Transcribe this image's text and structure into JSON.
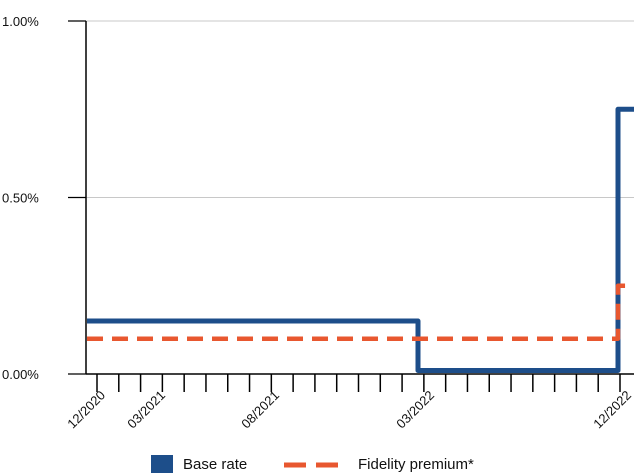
{
  "chart_data": {
    "type": "line",
    "title": "",
    "xlabel": "",
    "ylabel": "",
    "x_tick_labels": [
      "12/2020",
      "03/2021",
      "08/2021",
      "03/2022",
      "12/2022"
    ],
    "y_tick_labels": [
      "0.00%",
      "0.50%",
      "1.00%"
    ],
    "ylim": [
      0,
      1.0
    ],
    "grid": "horizontal",
    "legend_position": "bottom",
    "series": [
      {
        "name": "Base rate",
        "color": "#1d4e8a",
        "style": "solid-step",
        "points": [
          {
            "x": "12/2020",
            "y": 0.15
          },
          {
            "x": "03/2022",
            "y": 0.15
          },
          {
            "x": "03/2022",
            "y": 0.01
          },
          {
            "x": "12/2022",
            "y": 0.01
          },
          {
            "x": "12/2022",
            "y": 0.75
          }
        ]
      },
      {
        "name": "Fidelity premium*",
        "color": "#e8572f",
        "style": "dashed-step",
        "points": [
          {
            "x": "12/2020",
            "y": 0.1
          },
          {
            "x": "12/2022",
            "y": 0.1
          },
          {
            "x": "12/2022",
            "y": 0.25
          }
        ]
      }
    ]
  }
}
